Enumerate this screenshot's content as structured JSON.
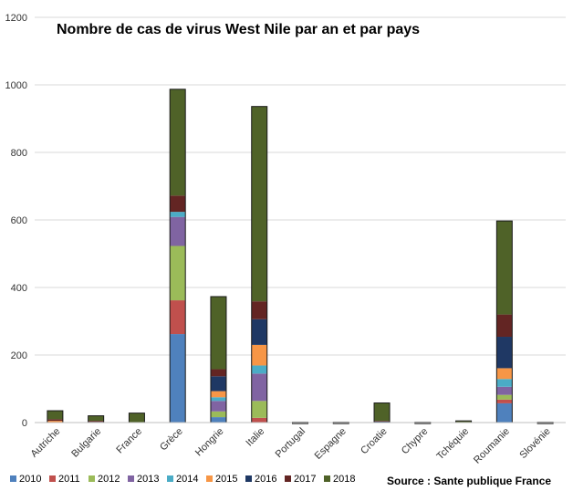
{
  "chart_data": {
    "type": "bar",
    "stacked": true,
    "title": "Nombre de cas de virus West Nile par an et par pays",
    "source": "Source : Sante publique France",
    "categories": [
      "Autriche",
      "Bulgarie",
      "France",
      "Grèce",
      "Hongrie",
      "Italie",
      "Portugal",
      "Espagne",
      "Croatie",
      "Chypre",
      "Tchéquie",
      "Roumanie",
      "Slovénie"
    ],
    "ylim": [
      0,
      1200
    ],
    "yticks": [
      "0",
      "200",
      "400",
      "600",
      "800",
      "1000",
      "1200"
    ],
    "grid": true,
    "legend": "bottom-left",
    "series": [
      {
        "name": "2010",
        "color": "#4f81bd",
        "values": [
          0,
          0,
          0,
          262,
          16,
          0,
          0,
          0,
          0,
          0,
          0,
          57,
          0
        ]
      },
      {
        "name": "2011",
        "color": "#c0504d",
        "values": [
          0,
          0,
          0,
          100,
          0,
          14,
          0,
          0,
          0,
          0,
          0,
          11,
          0
        ]
      },
      {
        "name": "2012",
        "color": "#9bbb59",
        "values": [
          0,
          0,
          0,
          161,
          17,
          50,
          0,
          0,
          0,
          0,
          0,
          14,
          0
        ]
      },
      {
        "name": "2013",
        "color": "#8064a2",
        "values": [
          0,
          0,
          0,
          86,
          31,
          81,
          0,
          0,
          0,
          0,
          0,
          24,
          0
        ]
      },
      {
        "name": "2014",
        "color": "#4bacc6",
        "values": [
          0,
          0,
          0,
          15,
          11,
          24,
          0,
          0,
          0,
          0,
          0,
          23,
          0
        ]
      },
      {
        "name": "2015",
        "color": "#f79646",
        "values": [
          5,
          0,
          1,
          0,
          18,
          61,
          1,
          0,
          1,
          0,
          0,
          32,
          0
        ]
      },
      {
        "name": "2016",
        "color": "#1f3864",
        "values": [
          0,
          2,
          0,
          0,
          44,
          76,
          0,
          0,
          2,
          0,
          0,
          93,
          0
        ]
      },
      {
        "name": "2017",
        "color": "#632523",
        "values": [
          5,
          3,
          0,
          48,
          21,
          53,
          0,
          0,
          2,
          0,
          0,
          66,
          0
        ]
      },
      {
        "name": "2018",
        "color": "#4f6228",
        "values": [
          25,
          15,
          27,
          315,
          215,
          577,
          0,
          1,
          53,
          1,
          5,
          277,
          1
        ]
      }
    ]
  }
}
